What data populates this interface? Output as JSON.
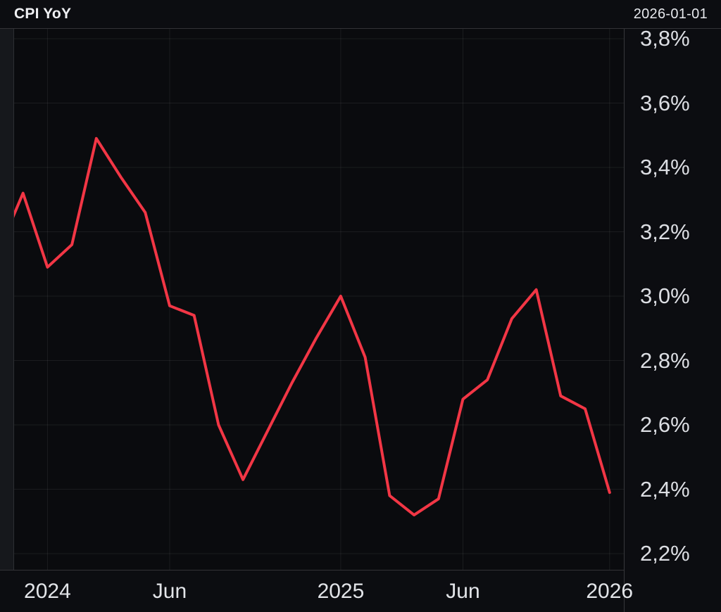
{
  "header": {
    "title": "CPI YoY",
    "date": "2026-01-01"
  },
  "colors": {
    "background": "#0c0d11",
    "plot_background": "#0a0b0e",
    "left_margin": "#16181c",
    "grid": "rgba(255,255,255,0.07)",
    "border": "rgba(255,255,255,0.17)",
    "line": "#f23645",
    "text_primary": "#eff0f3",
    "text_axis": "#dcdee3"
  },
  "chart_data": {
    "type": "line",
    "title": "CPI YoY",
    "unit": "%",
    "decimal_separator": ",",
    "grid": true,
    "legend": "none",
    "y_axis_side": "right",
    "x_axis_side": "bottom",
    "ylim": [
      2.15,
      3.83
    ],
    "x": [
      "2023-11",
      "2023-12",
      "2024-01",
      "2024-02",
      "2024-03",
      "2024-04",
      "2024-05",
      "2024-06",
      "2024-07",
      "2024-08",
      "2024-09",
      "2024-10",
      "2024-11",
      "2024-12",
      "2025-01",
      "2025-02",
      "2025-03",
      "2025-04",
      "2025-05",
      "2025-06",
      "2025-07",
      "2025-08",
      "2025-09",
      "2025-10",
      "2025-11",
      "2025-12"
    ],
    "series": [
      {
        "name": "CPI YoY",
        "color": "#f23645",
        "values": [
          3.14,
          3.32,
          3.09,
          3.16,
          3.49,
          3.37,
          3.26,
          2.97,
          2.94,
          2.6,
          2.43,
          2.58,
          2.73,
          2.87,
          3.0,
          2.81,
          2.38,
          2.32,
          2.37,
          2.68,
          2.74,
          2.93,
          3.02,
          2.69,
          2.65,
          2.39
        ]
      }
    ],
    "x_ticks": [
      {
        "index": 2,
        "label": "2024"
      },
      {
        "index": 7,
        "label": "Jun"
      },
      {
        "index": 14,
        "label": "2025"
      },
      {
        "index": 19,
        "label": "Jun"
      },
      {
        "index": 25,
        "label": "2026"
      }
    ],
    "y_ticks": [
      {
        "value": 3.8,
        "label": "3,8%"
      },
      {
        "value": 3.6,
        "label": "3,6%"
      },
      {
        "value": 3.4,
        "label": "3,4%"
      },
      {
        "value": 3.2,
        "label": "3,2%"
      },
      {
        "value": 3.0,
        "label": "3,0%"
      },
      {
        "value": 2.8,
        "label": "2,8%"
      },
      {
        "value": 2.6,
        "label": "2,6%"
      },
      {
        "value": 2.4,
        "label": "2,4%"
      },
      {
        "value": 2.2,
        "label": "2,2%"
      }
    ]
  }
}
